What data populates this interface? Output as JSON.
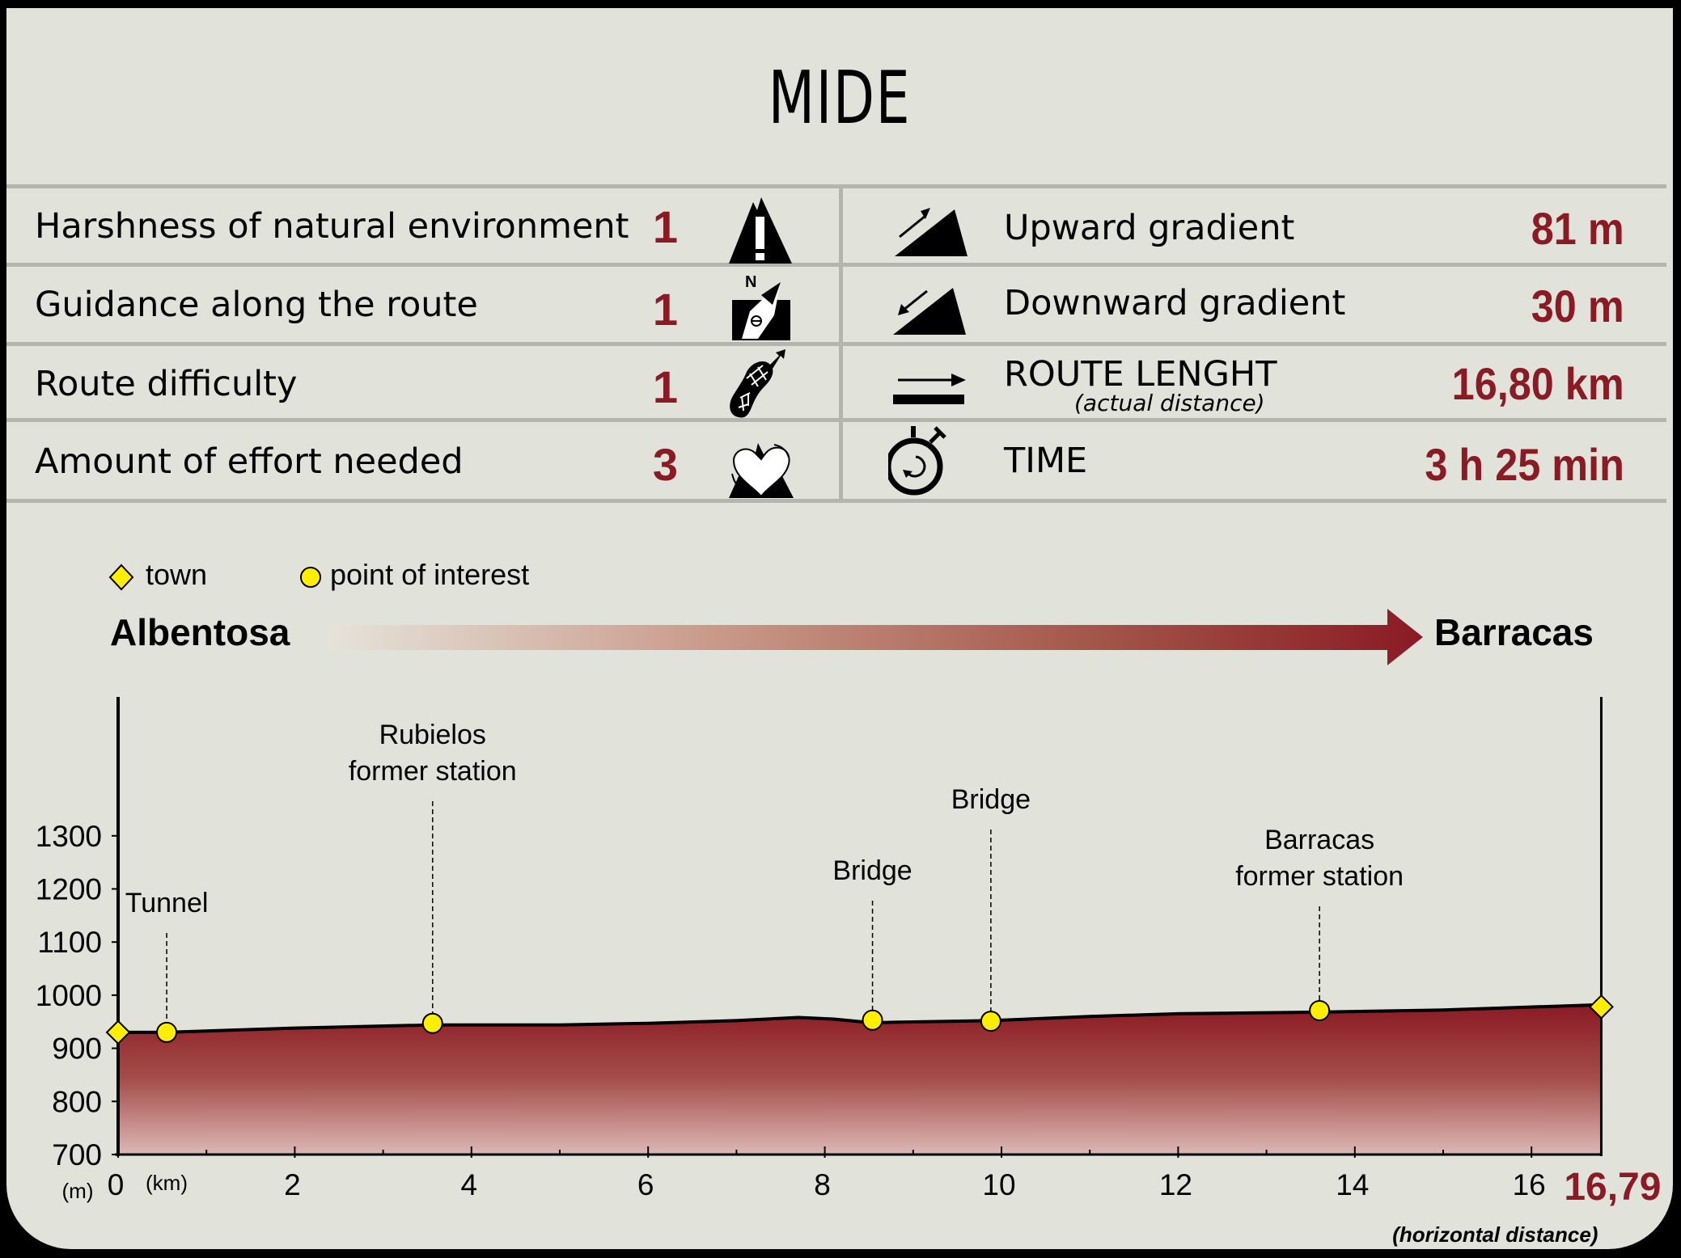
{
  "title": "MIDE",
  "mide_rows": [
    {
      "label": "Harshness of natural environment",
      "score": "1",
      "icon": "mountain-warning-icon"
    },
    {
      "label": "Guidance along the route",
      "score": "1",
      "icon": "compass-map-icon"
    },
    {
      "label": "Route difficulty",
      "score": "1",
      "icon": "boot-sole-icon"
    },
    {
      "label": "Amount of effort needed",
      "score": "3",
      "icon": "heart-mountain-icon"
    }
  ],
  "route_stats": [
    {
      "label": "Upward gradient",
      "sublabel": null,
      "value": "81 m",
      "icon": "upward-gradient-icon"
    },
    {
      "label": "Downward gradient",
      "sublabel": null,
      "value": "30 m",
      "icon": "downward-gradient-icon"
    },
    {
      "label": "ROUTE LENGHT",
      "sublabel": "(actual distance)",
      "value": "16,80 km",
      "icon": "route-length-icon"
    },
    {
      "label": "TIME",
      "sublabel": null,
      "value": "3 h 25 min",
      "icon": "stopwatch-icon"
    }
  ],
  "legend": {
    "town": "town",
    "poi": "point of interest"
  },
  "route": {
    "start": "Albentosa",
    "end": "Barracas"
  },
  "colors": {
    "accent": "#8a1a24",
    "background": "#e1e2da",
    "divider": "#b4b5ae",
    "marker": "#ffee00"
  },
  "chart_data": {
    "type": "area",
    "title": "Elevation profile Albentosa – Barracas",
    "xlabel": "(km)",
    "ylabel": "(m)",
    "x_unit_note": "(horizontal distance)",
    "x_end_label": "16,79",
    "xlim": [
      0,
      16.79
    ],
    "ylim": [
      700,
      1400
    ],
    "x_ticks": [
      0,
      2,
      4,
      6,
      8,
      10,
      12,
      14,
      16
    ],
    "y_ticks": [
      700,
      800,
      900,
      1000,
      1100,
      1200,
      1300
    ],
    "grid": false,
    "profile": {
      "x": [
        0,
        0.55,
        2.0,
        3.56,
        5.0,
        6.0,
        7.0,
        7.7,
        8.1,
        8.54,
        8.8,
        9.88,
        11.0,
        12.0,
        13.6,
        15.0,
        16.79
      ],
      "y": [
        930,
        930,
        938,
        944,
        944,
        947,
        952,
        958,
        955,
        948,
        949,
        952,
        960,
        965,
        968,
        972,
        982
      ]
    },
    "points": [
      {
        "name": "Albentosa",
        "type": "town",
        "km": 0,
        "elev": 930,
        "label": ""
      },
      {
        "name": "Tunnel",
        "type": "poi",
        "km": 0.55,
        "elev": 930,
        "label": "Tunnel"
      },
      {
        "name": "Rubielos former station",
        "type": "poi",
        "km": 3.56,
        "elev": 947,
        "label": "Rubielos|former station"
      },
      {
        "name": "Bridge",
        "type": "poi",
        "km": 8.54,
        "elev": 953,
        "label": "Bridge"
      },
      {
        "name": "Bridge",
        "type": "poi",
        "km": 9.88,
        "elev": 951,
        "label": "Bridge"
      },
      {
        "name": "Barracas former station",
        "type": "poi",
        "km": 13.6,
        "elev": 971,
        "label": "Barracas|former station"
      },
      {
        "name": "Barracas",
        "type": "town",
        "km": 16.79,
        "elev": 978,
        "label": ""
      }
    ]
  }
}
